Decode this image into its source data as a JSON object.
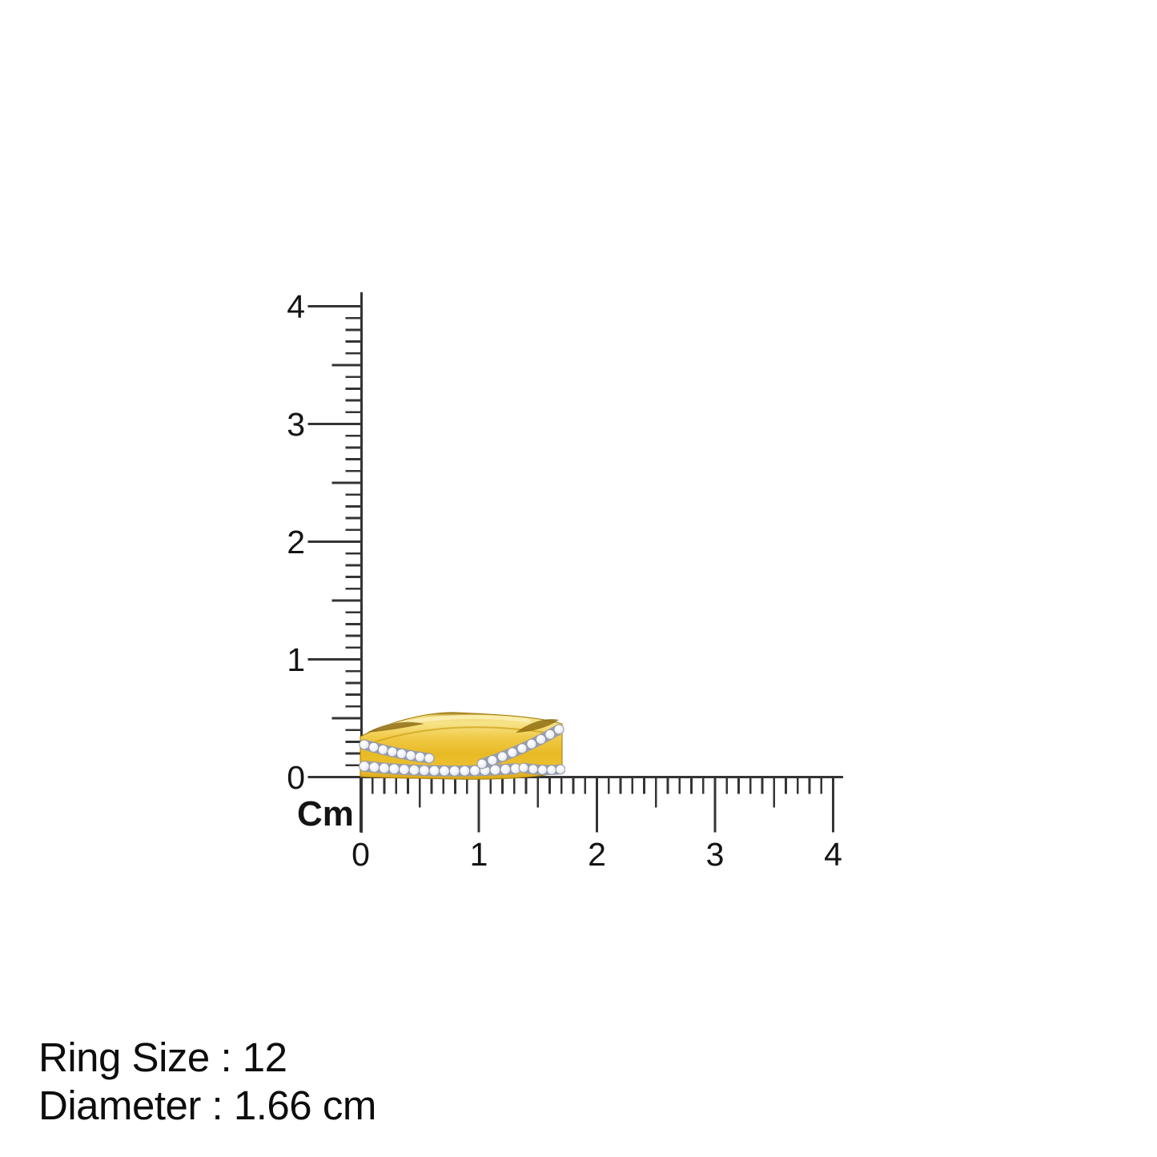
{
  "rulers": {
    "unit_label": "Cm",
    "vertical": {
      "min": 0,
      "max": 4,
      "labels": [
        "0",
        "1",
        "2",
        "3",
        "4"
      ]
    },
    "horizontal": {
      "min": 0,
      "max": 4,
      "labels": [
        "0",
        "1",
        "2",
        "3",
        "4"
      ]
    }
  },
  "product": {
    "name": "yellow-gold criss-cross ring with pave diamond rows (side view)",
    "gold_color": "#EEC136",
    "gold_highlight_color": "#F7E388",
    "gold_shadow_color": "#B58A12",
    "diamond_color": "#EFF1F8",
    "diamond_outline_color": "#8D93A2"
  },
  "details": {
    "ring_size_line": "Ring Size : 12",
    "diameter_line": "Diameter : 1.66 cm"
  }
}
